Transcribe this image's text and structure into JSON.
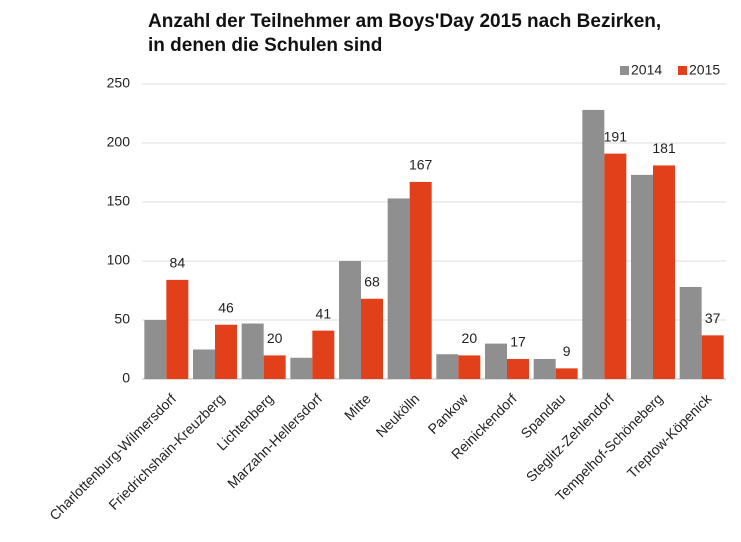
{
  "chart_data": {
    "type": "bar",
    "title": "Anzahl der Teilnehmer am Boys'Day 2015 nach Bezirken, in denen die Schulen sind",
    "categories": [
      "Charlottenburg-Wilmersdorf",
      "Friedrichshain-Kreuzberg",
      "Lichtenberg",
      "Marzahn-Hellersdorf",
      "Mitte",
      "Neukölln",
      "Pankow",
      "Reinickendorf",
      "Spandau",
      "Steglitz-Zehlendorf",
      "Tempelhof-Schöneberg",
      "Treptow-Köpenick"
    ],
    "series": [
      {
        "name": "2014",
        "color": "#8f8f8f",
        "values": [
          50,
          25,
          47,
          18,
          100,
          153,
          21,
          30,
          17,
          228,
          173,
          78
        ]
      },
      {
        "name": "2015",
        "color": "#e2401a",
        "values": [
          84,
          46,
          20,
          41,
          68,
          167,
          20,
          17,
          9,
          191,
          181,
          37
        ],
        "show_labels": true
      }
    ],
    "ylim": [
      0,
      250
    ],
    "yticks": [
      0,
      50,
      100,
      150,
      200,
      250
    ],
    "grid": true,
    "legend": "top-right"
  }
}
